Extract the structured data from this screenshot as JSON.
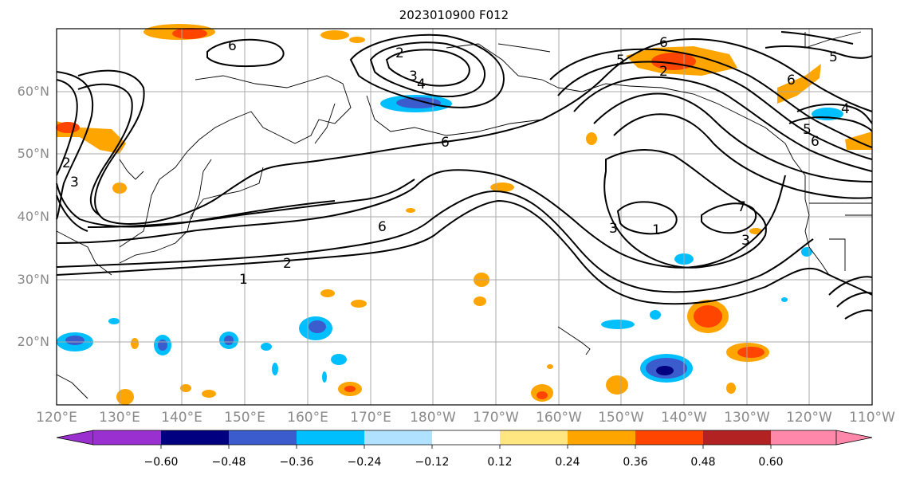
{
  "title": "2023010900 F012",
  "lat_labels": [
    "60°N",
    "50°N",
    "40°N",
    "30°N",
    "20°N"
  ],
  "lon_labels": [
    "120°E",
    "130°E",
    "140°E",
    "150°E",
    "160°E",
    "170°E",
    "180°W",
    "170°W",
    "160°W",
    "150°W",
    "140°W",
    "130°W",
    "120°W",
    "110°W"
  ],
  "contour_labels": [
    "6",
    "2",
    "3",
    "4",
    "6",
    "5",
    "2",
    "6",
    "5",
    "6",
    "4",
    "5",
    "6",
    "2",
    "3",
    "6",
    "2",
    "1",
    "3",
    "1",
    "7",
    "3"
  ],
  "colorbar": {
    "ticks": [
      "−0.60",
      "−0.48",
      "−0.36",
      "−0.24",
      "−0.12",
      "0.12",
      "0.24",
      "0.36",
      "0.48",
      "0.60"
    ],
    "colors": [
      "#9b30d0",
      "#000080",
      "#3a5ccc",
      "#00bfff",
      "#b0e2ff",
      "#ffffff",
      "#ffe680",
      "#ffa500",
      "#ff4500",
      "#b22222",
      "#ff88aa"
    ]
  },
  "palette": {
    "neg_dark": "#000080",
    "neg_mid": "#3a5ccc",
    "neg_light": "#00bfff",
    "neg_pale": "#b0e2ff",
    "pos_pale": "#ffe680",
    "pos_mid": "#ffa500",
    "pos_dark": "#ff4500",
    "pos_deep": "#b22222"
  }
}
